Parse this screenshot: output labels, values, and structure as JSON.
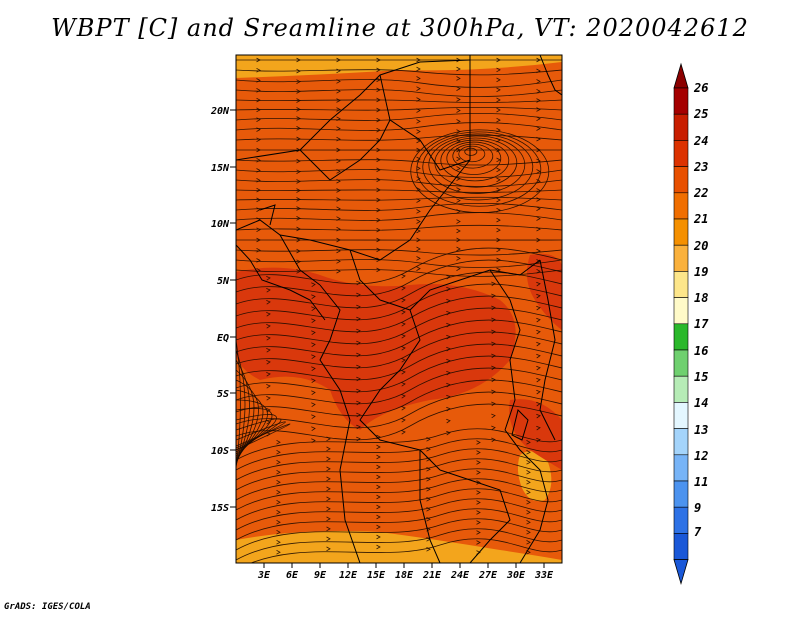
{
  "title": "WBPT [C] and Sreamline at 300hPa, VT: 2020042612",
  "credit": "GrADS: IGES/COLA",
  "lat_labels": [
    "20N",
    "15N",
    "10N",
    "5N",
    "EQ",
    "5S",
    "10S",
    "15S"
  ],
  "lon_labels": [
    "3E",
    "6E",
    "9E",
    "12E",
    "15E",
    "18E",
    "21E",
    "24E",
    "27E",
    "30E",
    "33E"
  ],
  "colorbar": {
    "labels": [
      "26",
      "25",
      "24",
      "23",
      "22",
      "21",
      "20",
      "19",
      "18",
      "17",
      "16",
      "15",
      "14",
      "13",
      "12",
      "11",
      "9",
      "7"
    ],
    "colors": [
      "#a50000",
      "#c81e00",
      "#dc3200",
      "#e85000",
      "#f06e00",
      "#f59000",
      "#fab13c",
      "#fde68a",
      "#fffac8",
      "#2ab82a",
      "#6fd06f",
      "#b6ecb6",
      "#e4f7ff",
      "#a4d4fb",
      "#77b4f7",
      "#4c93ef",
      "#2e72e6",
      "#1a58d8"
    ],
    "top_arrow_color": "#8b0000",
    "bottom_arrow_color": "#1a58d8"
  },
  "map": {
    "background": "#e75a0a",
    "warm_color": "#d9380c",
    "cool_color": "#f3a51c",
    "coast_color": "#000000"
  }
}
